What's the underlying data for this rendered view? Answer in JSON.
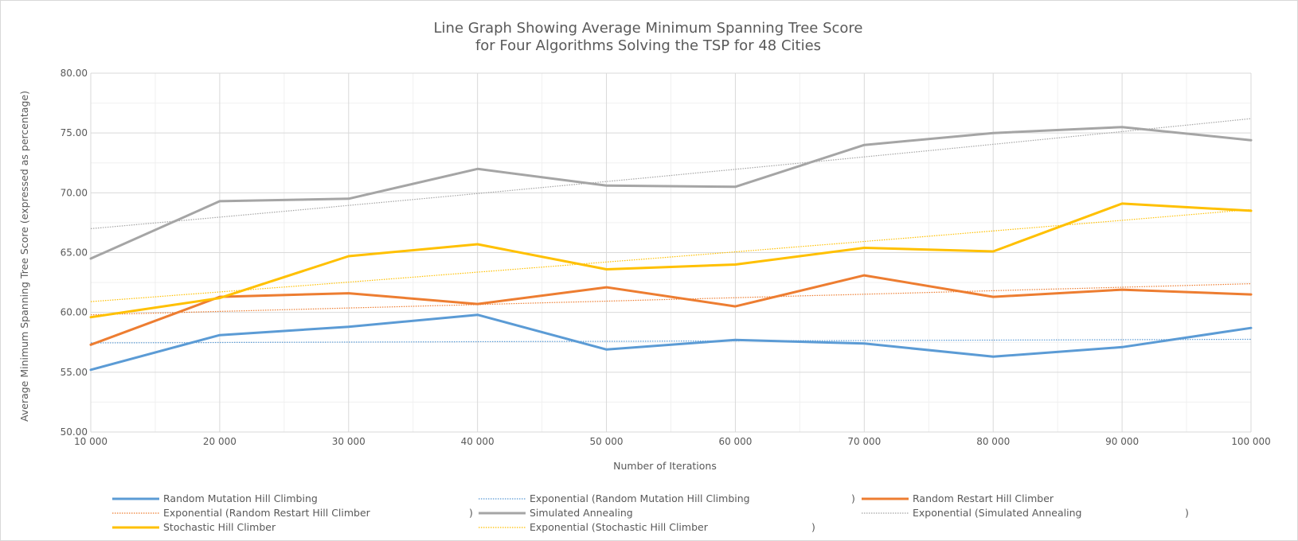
{
  "chart_data": {
    "type": "line",
    "title_lines": [
      "Line Graph Showing Average Minimum Spanning Tree Score",
      "for Four Algorithms Solving the TSP for 48 Cities"
    ],
    "xlabel": "Number of Iterations",
    "ylabel": "Average Minimum Spanning Tree Score (expressed as percentage)",
    "x_values": [
      10000,
      20000,
      30000,
      40000,
      50000,
      60000,
      70000,
      80000,
      90000,
      100000
    ],
    "x_tick_labels": [
      "10 000",
      "20 000",
      "30 000",
      "40 000",
      "50 000",
      "60 000",
      "70 000",
      "80 000",
      "90 000",
      "100 000"
    ],
    "ylim": [
      50,
      80
    ],
    "y_ticks": [
      50,
      55,
      60,
      65,
      70,
      75,
      80
    ],
    "y_tick_labels": [
      "50.00",
      "55.00",
      "60.00",
      "65.00",
      "70.00",
      "75.00",
      "80.00"
    ],
    "grid": true,
    "legend_position": "bottom",
    "series": [
      {
        "name": "Random Mutation Hill Climbing",
        "color": "#5b9bd5",
        "style": "solid",
        "values": [
          55.2,
          58.1,
          58.8,
          59.8,
          56.9,
          57.7,
          57.4,
          56.3,
          57.1,
          58.7
        ]
      },
      {
        "name": "Random Restart Hill Climber",
        "color": "#ed7d31",
        "style": "solid",
        "values": [
          57.3,
          61.3,
          61.6,
          60.7,
          62.1,
          60.5,
          63.1,
          61.3,
          61.9,
          61.5
        ]
      },
      {
        "name": "Simulated Annealing",
        "color": "#a5a5a5",
        "style": "solid",
        "values": [
          64.5,
          69.3,
          69.5,
          72.0,
          70.6,
          70.5,
          74.0,
          75.0,
          75.5,
          74.4
        ]
      },
      {
        "name": "Stochastic Hill Climber",
        "color": "#ffc000",
        "style": "solid",
        "values": [
          59.6,
          61.2,
          64.7,
          65.7,
          63.6,
          64.0,
          65.4,
          65.1,
          69.1,
          68.5
        ]
      }
    ],
    "trendlines": [
      {
        "legend_label": "Exponential (Random Mutation Hill Climbing",
        "color": "#5b9bd5",
        "style": "dotted",
        "start": 57.45,
        "end": 57.75
      },
      {
        "legend_label": "Exponential (Random Restart Hill Climber",
        "color": "#ed7d31",
        "style": "dotted",
        "start": 59.8,
        "end": 62.4
      },
      {
        "legend_label": "Exponential (Simulated Annealing",
        "color": "#a5a5a5",
        "style": "dotted",
        "start": 67.0,
        "end": 76.2
      },
      {
        "legend_label": "Exponential (Stochastic Hill Climber",
        "color": "#ffc000",
        "style": "dotted",
        "start": 60.9,
        "end": 68.6
      }
    ],
    "legend_entries": [
      {
        "label": "Random Mutation Hill Climbing",
        "closing": "",
        "color": "#5b9bd5",
        "style": "solid"
      },
      {
        "label": "Exponential (Random Mutation Hill Climbing",
        "closing": ")",
        "color": "#5b9bd5",
        "style": "dotted"
      },
      {
        "label": "Random Restart Hill Climber",
        "closing": "",
        "color": "#ed7d31",
        "style": "solid"
      },
      {
        "label": "Exponential (Random Restart Hill Climber",
        "closing": ")",
        "color": "#ed7d31",
        "style": "dotted"
      },
      {
        "label": "Simulated Annealing",
        "closing": "",
        "color": "#a5a5a5",
        "style": "solid"
      },
      {
        "label": "Exponential (Simulated Annealing",
        "closing": ")",
        "color": "#a5a5a5",
        "style": "dotted"
      },
      {
        "label": "Stochastic Hill Climber",
        "closing": "",
        "color": "#ffc000",
        "style": "solid"
      },
      {
        "label": "Exponential (Stochastic Hill Climber",
        "closing": ")",
        "color": "#ffc000",
        "style": "dotted"
      }
    ]
  }
}
